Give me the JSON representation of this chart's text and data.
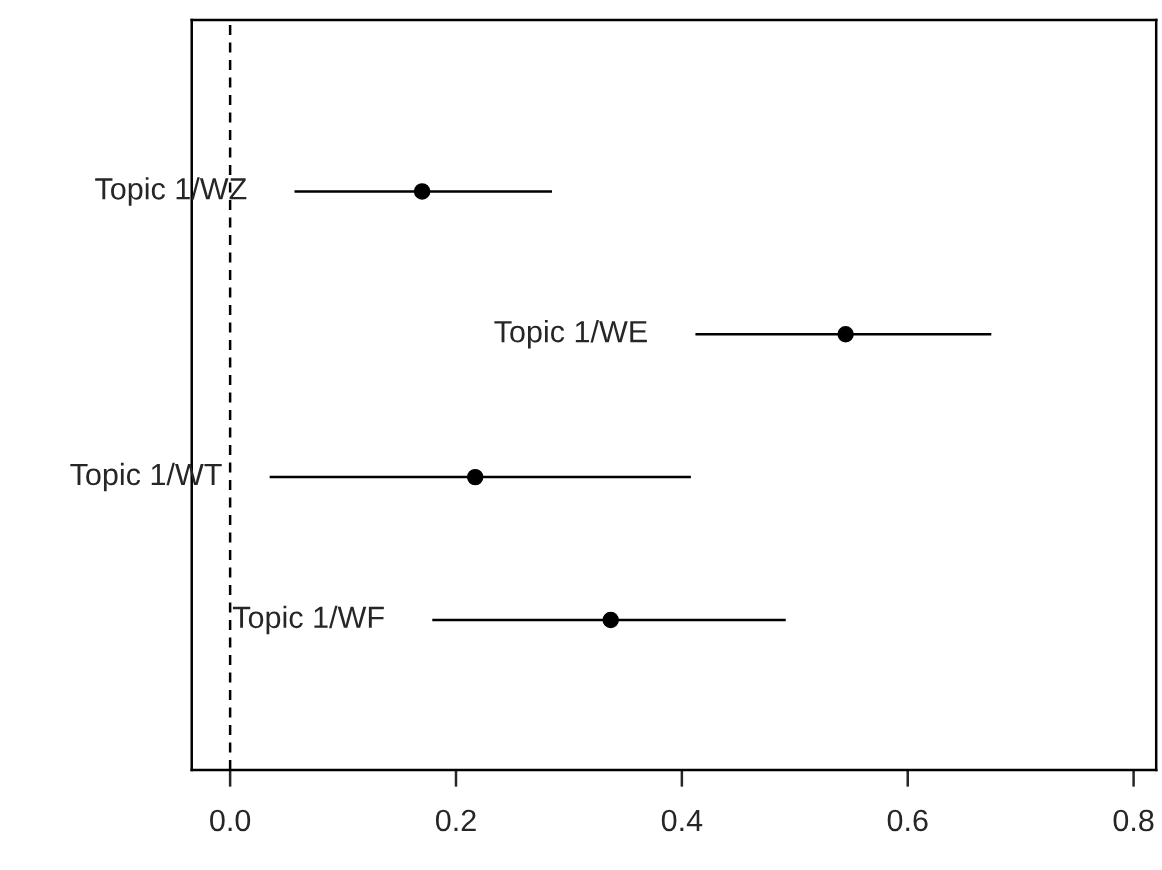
{
  "chart_data": {
    "type": "scatter",
    "orientation": "horizontal",
    "categories": [
      "Topic 1/WZ",
      "Topic 1/WE",
      "Topic 1/WT",
      "Topic 1/WF"
    ],
    "values": [
      0.17,
      0.545,
      0.217,
      0.337
    ],
    "errors": [
      [
        0.057,
        0.285
      ],
      [
        0.412,
        0.674
      ],
      [
        0.035,
        0.408
      ],
      [
        0.179,
        0.492
      ]
    ],
    "color": "#000000",
    "marker": "circle",
    "xlim": [
      -0.034,
      0.82
    ],
    "xticks": [
      {
        "value": 0,
        "label": "0.0"
      },
      0.2,
      0.4,
      0.6,
      0.8
    ],
    "ref_lines": [
      {
        "axis": "x",
        "value": 0,
        "line_style": "dashed",
        "color": "#000000"
      }
    ],
    "tick_labels": "x",
    "grid": false,
    "legend": false
  }
}
